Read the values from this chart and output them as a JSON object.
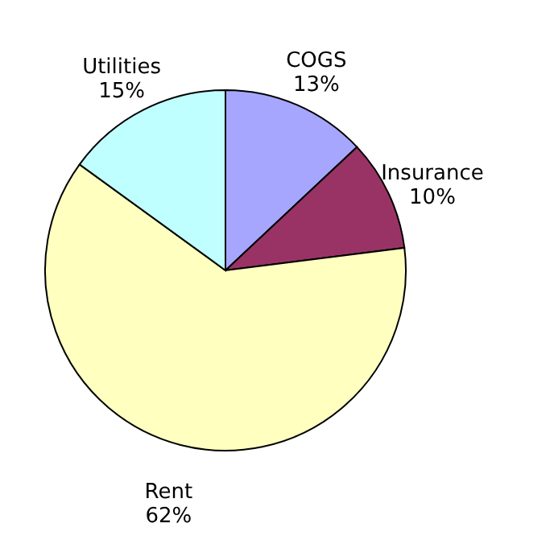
{
  "chart_data": {
    "type": "pie",
    "categories": [
      "COGS",
      "Insurance",
      "Rent",
      "Utilities"
    ],
    "values": [
      13,
      10,
      62,
      15
    ],
    "value_labels": [
      "13%",
      "10%",
      "62%",
      "15%"
    ],
    "colors": [
      "#a6a6ff",
      "#993366",
      "#ffffc0",
      "#c0ffff"
    ]
  }
}
